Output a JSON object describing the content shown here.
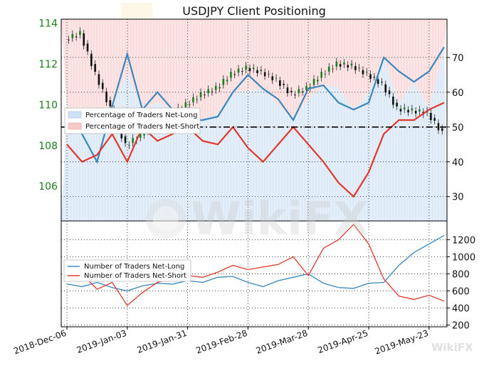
{
  "chart_data": [
    {
      "type": "line",
      "title": "USDJPY Client Positioning",
      "x": [
        "2018-12-06",
        "2018-12-13",
        "2018-12-20",
        "2018-12-27",
        "2019-01-03",
        "2019-01-10",
        "2019-01-17",
        "2019-01-24",
        "2019-01-31",
        "2019-02-07",
        "2019-02-14",
        "2019-02-21",
        "2019-02-28",
        "2019-03-07",
        "2019-03-14",
        "2019-03-21",
        "2019-03-28",
        "2019-04-04",
        "2019-04-11",
        "2019-04-18",
        "2019-04-25",
        "2019-05-02",
        "2019-05-09",
        "2019-05-16",
        "2019-05-23",
        "2019-05-30"
      ],
      "xtick_labels": [
        "2018-Dec-06",
        "2019-Jan-03",
        "2019-Jan-31",
        "2019-Feb-28",
        "2019-Mar-28",
        "2019-Apr-25",
        "2019-May-23"
      ],
      "price_axis": {
        "ylim": [
          104.3,
          114.2
        ],
        "ticks": [
          106,
          108,
          110,
          112,
          114
        ],
        "color": "#1a7f1a"
      },
      "percent_axis": {
        "ylim": [
          23,
          81
        ],
        "ticks": [
          30,
          40,
          50,
          60,
          70
        ]
      },
      "reference_level": 50,
      "legend": {
        "placement": "left",
        "entries": [
          "Percentage of Traders Net-Long",
          "Percentage of Traders Net-Short"
        ]
      },
      "series": [
        {
          "name": "Percentage of Traders Net-Long",
          "color": "#3a87c0",
          "values": [
            55,
            48,
            40,
            56,
            71,
            55,
            60,
            55,
            52,
            52,
            53,
            60,
            65,
            61,
            58,
            52,
            61,
            62,
            57,
            55,
            57,
            70,
            66,
            63,
            66,
            73
          ]
        },
        {
          "name": "Percentage of Traders Net-Short",
          "color": "#e0382c",
          "values": [
            45,
            40,
            42,
            48,
            40,
            50,
            46,
            48,
            50,
            46,
            45,
            50,
            44,
            40,
            45,
            50,
            45,
            40,
            34,
            30,
            37,
            48,
            52,
            52,
            55,
            57
          ]
        },
        {
          "name": "USDJPY",
          "color": "#1a7f1a",
          "values": [
            113.2,
            113.5,
            111.5,
            109.8,
            108.0,
            108.5,
            109.3,
            109.5,
            110.0,
            110.5,
            110.8,
            111.5,
            111.8,
            111.6,
            111.2,
            110.5,
            110.8,
            111.5,
            112.0,
            111.9,
            111.5,
            111.0,
            109.8,
            109.7,
            109.6,
            108.6
          ]
        }
      ]
    },
    {
      "type": "line",
      "ylim": [
        180,
        1420
      ],
      "ticks": [
        200,
        400,
        600,
        800,
        1000,
        1200
      ],
      "legend": {
        "placement": "left",
        "entries": [
          "Number of Traders Net-Long",
          "Number of Traders Net-Short"
        ]
      },
      "series": [
        {
          "name": "Number of Traders Net-Long",
          "color": "#3a87c0",
          "values": [
            680,
            650,
            700,
            640,
            600,
            660,
            690,
            680,
            720,
            700,
            760,
            770,
            700,
            650,
            720,
            760,
            800,
            690,
            640,
            630,
            690,
            700,
            900,
            1050,
            1150,
            1250
          ]
        },
        {
          "name": "Number of Traders Net-Short",
          "color": "#e0382c",
          "values": [
            780,
            800,
            620,
            700,
            430,
            580,
            700,
            750,
            780,
            760,
            820,
            900,
            850,
            880,
            910,
            1000,
            780,
            1100,
            1200,
            1380,
            1150,
            740,
            540,
            500,
            550,
            480
          ]
        }
      ]
    }
  ],
  "watermark": {
    "text": "WikiFX",
    "logo_icon": "wikifx-logo-icon"
  }
}
